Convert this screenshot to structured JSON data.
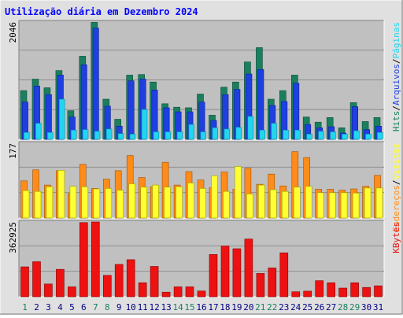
{
  "chart_data": {
    "type": "bar",
    "title": "Utilização diária em Dezembro 2024",
    "categories": [
      "1",
      "2",
      "3",
      "4",
      "5",
      "6",
      "7",
      "8",
      "9",
      "10",
      "11",
      "12",
      "13",
      "14",
      "15",
      "16",
      "17",
      "18",
      "19",
      "20",
      "21",
      "22",
      "23",
      "24",
      "25",
      "26",
      "27",
      "28",
      "29",
      "30",
      "31"
    ],
    "weekend_days": [
      "1",
      "7",
      "8",
      "14",
      "15",
      "21",
      "22",
      "28",
      "29"
    ],
    "colors": {
      "title": "#0000ff",
      "hits": "#1a7f5f",
      "files": "#1f3fe0",
      "pages": "#22d5f0",
      "visits": "#ffff33",
      "sites": "#ff8c1a",
      "kbytes": "#ee1111",
      "weekday_label": "#000080",
      "weekend_label": "#1a7f5f"
    },
    "panels": [
      {
        "axis_max_label": "2046",
        "ylim": [
          0,
          2046
        ],
        "legend": [
          "Hits",
          "/",
          "Arquivos",
          "/",
          "Páginas"
        ],
        "series": [
          {
            "name": "Hits",
            "key": "hits",
            "values": [
              850,
              1050,
              900,
              1200,
              500,
              1450,
              2040,
              700,
              350,
              1120,
              1130,
              1000,
              620,
              560,
              550,
              790,
              420,
              910,
              1000,
              1350,
              1600,
              700,
              850,
              1120,
              390,
              300,
              380,
              200,
              640,
              310,
              380
            ]
          },
          {
            "name": "Arquivos",
            "key": "files",
            "values": [
              650,
              930,
              780,
              1120,
              390,
              1300,
              1940,
              580,
              230,
              1020,
              1050,
              860,
              550,
              480,
              480,
              650,
              330,
              780,
              870,
              1140,
              1220,
              590,
              660,
              980,
              260,
              200,
              220,
              110,
              570,
              170,
              230
            ]
          },
          {
            "name": "Páginas",
            "key": "pages",
            "values": [
              120,
              280,
              120,
              700,
              160,
              170,
              140,
              180,
              100,
              90,
              520,
              130,
              130,
              130,
              260,
              130,
              200,
              180,
              210,
              400,
              160,
              280,
              160,
              160,
              90,
              140,
              130,
              90,
              150,
              90,
              120
            ]
          }
        ]
      },
      {
        "axis_max_label": "177",
        "ylim": [
          0,
          177
        ],
        "legend": [
          "Endereços",
          "/",
          "Visitas"
        ],
        "series": [
          {
            "name": "Endereços",
            "key": "sites",
            "values": [
              88,
              114,
              78,
              112,
              58,
              127,
              70,
              92,
              112,
              148,
              96,
              74,
              132,
              78,
              110,
              90,
              72,
              109,
              68,
              118,
              80,
              104,
              76,
              157,
              143,
              68,
              68,
              66,
              69,
              75,
              101
            ]
          },
          {
            "name": "Visitas",
            "key": "visits",
            "values": [
              65,
              63,
              74,
              113,
              75,
              74,
              69,
              70,
              66,
              81,
              73,
              78,
              73,
              74,
              83,
              70,
              100,
              63,
              122,
              57,
              78,
              67,
              63,
              73,
              75,
              60,
              60,
              60,
              59,
              71,
              71
            ]
          }
        ]
      },
      {
        "axis_max_label": "362925",
        "ylim": [
          0,
          362925
        ],
        "legend": [
          "KBytes"
        ],
        "series": [
          {
            "name": "KBytes",
            "key": "kbytes",
            "values": [
              145000,
              170000,
              62000,
              133000,
              48000,
              360000,
              362925,
              104000,
              157000,
              180000,
              68000,
              147000,
              22000,
              48000,
              48000,
              28000,
              205000,
              246000,
              233000,
              280000,
              113000,
              140000,
              213000,
              24000,
              27000,
              78000,
              68000,
              42000,
              68000,
              45000,
              53000
            ]
          }
        ]
      }
    ]
  }
}
